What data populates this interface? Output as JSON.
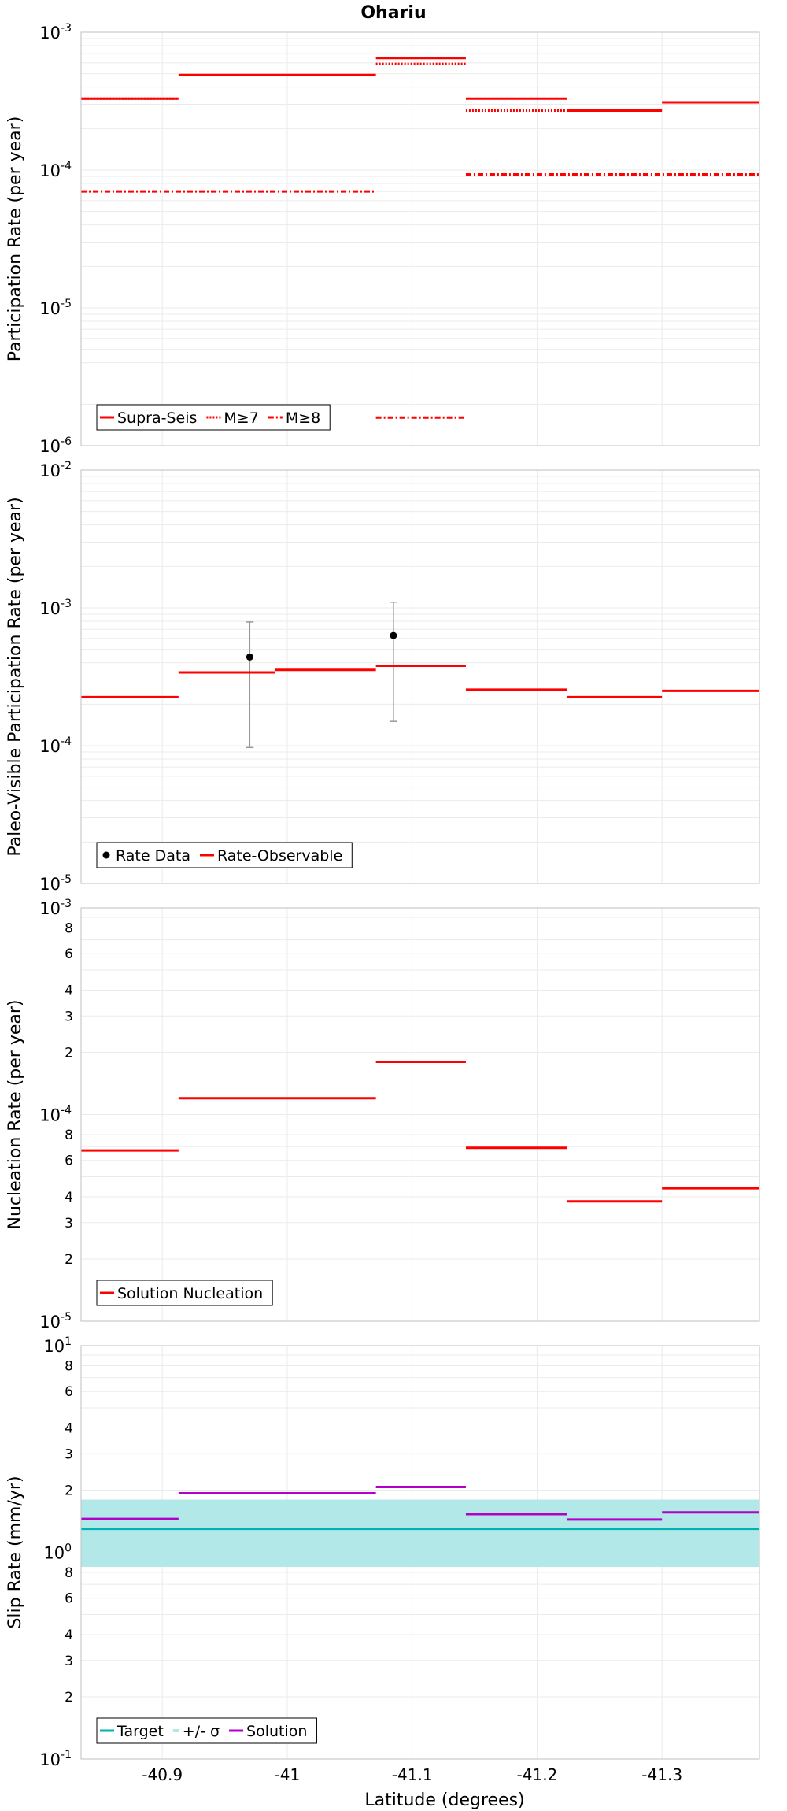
{
  "figure": {
    "title": "Ohariu",
    "xlabel": "Latitude (degrees)",
    "xlim": [
      -40.835,
      -41.378
    ],
    "xticks": [
      -40.9,
      -41,
      -41.1,
      -41.2,
      -41.3
    ],
    "xtick_labels": [
      "-40.9",
      "-41",
      "-41.1",
      "-41.2",
      "-41.3"
    ]
  },
  "chart_data": [
    {
      "type": "line",
      "name": "participation",
      "ylabel": "Participation Rate (per year)",
      "yscale": "log",
      "ylim": [
        1e-06,
        0.001
      ],
      "ytick_labels": [
        {
          "base": "10",
          "exp": "-6"
        },
        {
          "base": "10",
          "exp": "-5"
        },
        {
          "base": "10",
          "exp": "-4"
        },
        {
          "base": "10",
          "exp": "-3"
        }
      ],
      "minor_tick_labels": [],
      "legend_position": "bottom-left",
      "series": [
        {
          "name": "Supra-Seis",
          "color": "#ff0000",
          "style": "solid",
          "segments": [
            {
              "x": [
                -40.835,
                -40.913
              ],
              "y": 0.00033
            },
            {
              "x": [
                -40.913,
                -41.071
              ],
              "y": 0.00049
            },
            {
              "x": [
                -41.071,
                -41.143
              ],
              "y": 0.00065
            },
            {
              "x": [
                -41.143,
                -41.224
              ],
              "y": 0.00033
            },
            {
              "x": [
                -41.224,
                -41.3
              ],
              "y": 0.00027
            },
            {
              "x": [
                -41.3,
                -41.378
              ],
              "y": 0.00031
            }
          ]
        },
        {
          "name": "M≥7",
          "color": "#ff0000",
          "style": "dotted",
          "segments": [
            {
              "x": [
                -40.835,
                -40.913
              ],
              "y": 0.00033
            },
            {
              "x": [
                -41.071,
                -41.143
              ],
              "y": 0.00059
            },
            {
              "x": [
                -41.143,
                -41.224
              ],
              "y": 0.00027
            }
          ]
        },
        {
          "name": "M≥8",
          "color": "#ff0000",
          "style": "dashdot",
          "segments": [
            {
              "x": [
                -40.835,
                -41.071
              ],
              "y": 7e-05
            },
            {
              "x": [
                -41.071,
                -41.143
              ],
              "y": 1.6e-06
            },
            {
              "x": [
                -41.143,
                -41.378
              ],
              "y": 9.3e-05
            }
          ]
        }
      ]
    },
    {
      "type": "line",
      "name": "paleo",
      "ylabel": "Paleo-Visible Participation Rate (per year)",
      "yscale": "log",
      "ylim": [
        1e-05,
        0.01
      ],
      "ytick_labels": [
        {
          "base": "10",
          "exp": "-5"
        },
        {
          "base": "10",
          "exp": "-4"
        },
        {
          "base": "10",
          "exp": "-3"
        },
        {
          "base": "10",
          "exp": "-2"
        }
      ],
      "minor_tick_labels": [],
      "legend_position": "bottom-left",
      "series": [
        {
          "name": "Rate Data",
          "color": "#000000",
          "style": "points",
          "points": [
            {
              "x": -40.97,
              "y": 0.00044,
              "ylow": 9.7e-05,
              "yhigh": 0.00079
            },
            {
              "x": -41.085,
              "y": 0.00063,
              "ylow": 0.00015,
              "yhigh": 0.0011
            }
          ]
        },
        {
          "name": "Rate-Observable",
          "color": "#ff0000",
          "style": "solid",
          "segments": [
            {
              "x": [
                -40.835,
                -40.913
              ],
              "y": 0.000225
            },
            {
              "x": [
                -40.913,
                -40.99
              ],
              "y": 0.00034
            },
            {
              "x": [
                -40.99,
                -41.071
              ],
              "y": 0.000355
            },
            {
              "x": [
                -41.071,
                -41.143
              ],
              "y": 0.00038
            },
            {
              "x": [
                -41.143,
                -41.224
              ],
              "y": 0.000255
            },
            {
              "x": [
                -41.224,
                -41.3
              ],
              "y": 0.000225
            },
            {
              "x": [
                -41.3,
                -41.378
              ],
              "y": 0.00025
            }
          ]
        }
      ]
    },
    {
      "type": "line",
      "name": "nucleation",
      "ylabel": "Nucleation Rate (per year)",
      "yscale": "log",
      "ylim": [
        1e-05,
        0.001
      ],
      "ytick_labels": [
        {
          "base": "10",
          "exp": "-5"
        },
        {
          "base": "10",
          "exp": "-4"
        },
        {
          "base": "10",
          "exp": "-3"
        }
      ],
      "minor_tick_labels": [
        "2",
        "3",
        "4",
        "6",
        "8"
      ],
      "legend_position": "bottom-left",
      "series": [
        {
          "name": "Solution Nucleation",
          "color": "#ff0000",
          "style": "solid",
          "segments": [
            {
              "x": [
                -40.835,
                -40.913
              ],
              "y": 6.7e-05
            },
            {
              "x": [
                -40.913,
                -41.071
              ],
              "y": 0.00012
            },
            {
              "x": [
                -41.071,
                -41.143
              ],
              "y": 0.00018
            },
            {
              "x": [
                -41.143,
                -41.224
              ],
              "y": 6.9e-05
            },
            {
              "x": [
                -41.224,
                -41.3
              ],
              "y": 3.8e-05
            },
            {
              "x": [
                -41.3,
                -41.378
              ],
              "y": 4.4e-05
            }
          ]
        }
      ]
    },
    {
      "type": "line",
      "name": "slip",
      "ylabel": "Slip Rate (mm/yr)",
      "yscale": "log",
      "ylim": [
        0.1,
        10
      ],
      "ytick_labels": [
        {
          "base": "10",
          "exp": "-1"
        },
        {
          "base": "10",
          "exp": "0"
        },
        {
          "base": "10",
          "exp": "1"
        }
      ],
      "minor_tick_labels": [
        "2",
        "3",
        "4",
        "6",
        "8"
      ],
      "legend_position": "bottom-left",
      "band": {
        "name": "+/- σ",
        "color": "#b2e8e8",
        "ylow": 0.85,
        "yhigh": 1.8
      },
      "series": [
        {
          "name": "Target",
          "color": "#00b2b2",
          "style": "solid",
          "segments": [
            {
              "x": [
                -40.835,
                -41.378
              ],
              "y": 1.3
            }
          ]
        },
        {
          "name": "+/- σ",
          "color": "#b2e8e8",
          "style": "band",
          "segments": []
        },
        {
          "name": "Solution",
          "color": "#b300c8",
          "style": "solid",
          "segments": [
            {
              "x": [
                -40.835,
                -40.913
              ],
              "y": 1.45
            },
            {
              "x": [
                -40.913,
                -41.071
              ],
              "y": 1.93
            },
            {
              "x": [
                -41.071,
                -41.143
              ],
              "y": 2.07
            },
            {
              "x": [
                -41.143,
                -41.224
              ],
              "y": 1.53
            },
            {
              "x": [
                -41.224,
                -41.3
              ],
              "y": 1.44
            },
            {
              "x": [
                -41.3,
                -41.378
              ],
              "y": 1.56
            }
          ]
        }
      ]
    }
  ]
}
